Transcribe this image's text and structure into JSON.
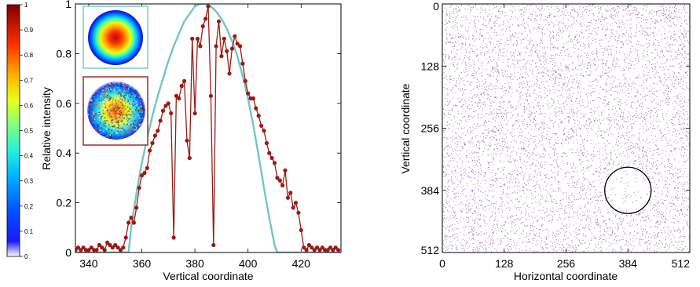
{
  "chart_data": [
    {
      "type": "colorbar",
      "min": 0,
      "max": 1,
      "ticks": [
        "0",
        "0.1",
        "0.2",
        "0.3",
        "0.4",
        "0.5",
        "0.6",
        "0.7",
        "0.8",
        "0.9",
        "1"
      ],
      "colormap": "jet"
    },
    {
      "type": "line",
      "xlabel": "Vertical coordinate",
      "ylabel": "Relative intensity",
      "xlim": [
        335,
        435
      ],
      "ylim": [
        0,
        1
      ],
      "xticks": [
        "340",
        "360",
        "380",
        "400",
        "420"
      ],
      "yticks": [
        "0",
        "0.2",
        "0.4",
        "0.6",
        "0.8",
        "1"
      ],
      "series": [
        {
          "kind": "theory",
          "color": "#72c5c5",
          "x": [
            335,
            355,
            356,
            358,
            360,
            362,
            364,
            366,
            368,
            370,
            372,
            374,
            376,
            378,
            380,
            382,
            384,
            386,
            388,
            390,
            392,
            394,
            396,
            398,
            400,
            402,
            404,
            406,
            408,
            410,
            411,
            412,
            435
          ],
          "y": [
            0,
            0,
            0.1,
            0.24,
            0.36,
            0.46,
            0.55,
            0.63,
            0.7,
            0.77,
            0.83,
            0.88,
            0.93,
            0.96,
            0.99,
            1.0,
            1.0,
            0.99,
            0.97,
            0.94,
            0.9,
            0.85,
            0.79,
            0.71,
            0.62,
            0.51,
            0.39,
            0.26,
            0.14,
            0.03,
            0,
            0,
            0
          ]
        },
        {
          "kind": "measured",
          "color": "#9b1b14",
          "x": [
            335,
            336,
            337,
            338,
            339,
            340,
            341,
            342,
            343,
            344,
            345,
            346,
            347,
            348,
            349,
            350,
            351,
            352,
            353,
            354,
            355,
            356,
            357,
            358,
            359,
            360,
            361,
            362,
            363,
            364,
            365,
            366,
            367,
            368,
            369,
            370,
            371,
            372,
            373,
            374,
            375,
            376,
            377,
            378,
            379,
            380,
            381,
            382,
            383,
            384,
            385,
            386,
            387,
            388,
            389,
            390,
            391,
            392,
            393,
            394,
            395,
            396,
            397,
            398,
            399,
            400,
            401,
            402,
            403,
            404,
            405,
            406,
            407,
            408,
            409,
            410,
            411,
            412,
            413,
            414,
            415,
            416,
            417,
            418,
            419,
            420,
            421,
            422,
            423,
            424,
            425,
            426,
            427,
            428,
            429,
            430,
            431,
            432,
            433,
            434
          ],
          "y": [
            0.01,
            0.02,
            0.01,
            0.02,
            0.01,
            0.01,
            0.02,
            0.01,
            0.01,
            0.03,
            0.02,
            0.01,
            0.04,
            0.03,
            0.02,
            0.03,
            0.02,
            0.01,
            0.02,
            0.06,
            0.12,
            0.14,
            0.12,
            0.18,
            0.26,
            0.31,
            0.32,
            0.34,
            0.41,
            0.44,
            0.47,
            0.49,
            0.53,
            0.57,
            0.59,
            0.6,
            0.56,
            0.06,
            0.63,
            0.62,
            0.67,
            0.69,
            0.45,
            0.38,
            0.86,
            0.56,
            0.86,
            0.83,
            0.91,
            0.94,
            0.99,
            0.63,
            0.03,
            0.83,
            0.93,
            0.79,
            0.86,
            0.81,
            0.72,
            0.82,
            0.87,
            0.84,
            0.83,
            0.76,
            0.69,
            0.64,
            0.62,
            0.62,
            0.58,
            0.55,
            0.51,
            0.49,
            0.44,
            0.4,
            0.38,
            0.36,
            0.3,
            0.29,
            0.27,
            0.33,
            0.22,
            0.24,
            0.18,
            0.2,
            0.16,
            0.09,
            0.02,
            0.01,
            0.03,
            0.02,
            0.01,
            0.02,
            0.01,
            0.02,
            0.01,
            0.01,
            0.02,
            0.01,
            0.02,
            0.01
          ]
        }
      ]
    },
    {
      "type": "heatmap",
      "xlabel": "Horizontal coordinate",
      "ylabel": "Vertical coordinate",
      "xlim": [
        0,
        512
      ],
      "ylim": [
        512,
        0
      ],
      "xticks": [
        "0",
        "128",
        "256",
        "384",
        "512"
      ],
      "yticks": [
        "0",
        "128",
        "256",
        "384",
        "512"
      ],
      "annotation": {
        "shape": "circle",
        "center": [
          384,
          384
        ],
        "radius": 48
      }
    }
  ],
  "colors": {
    "line": "#9b1b14",
    "theory": "#72c5c5",
    "speckle": "#7e4a8e",
    "inset1_border": "#72c5c5",
    "inset2_border": "#9b1b14"
  }
}
